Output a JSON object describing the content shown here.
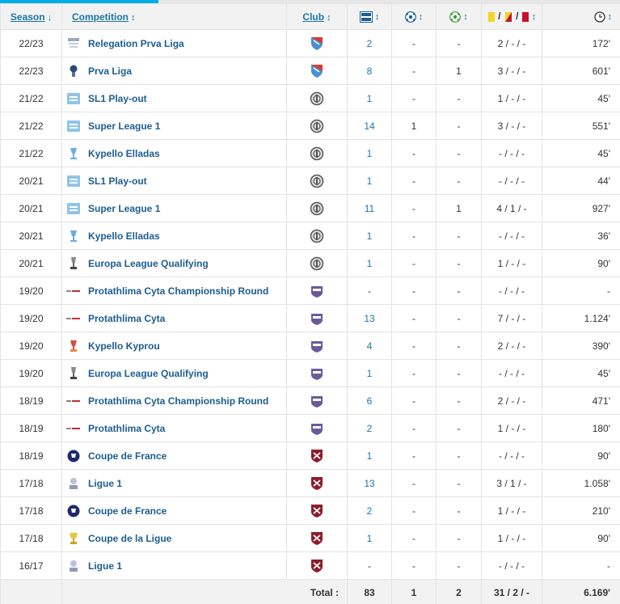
{
  "headers": {
    "season": "Season",
    "season_sort": "↓",
    "competition": "Competition",
    "competition_sort": "↕",
    "club": "Club",
    "club_sort": "↕",
    "sort": "↕",
    "cards_sep": " / ",
    "total_label": "Total :"
  },
  "rows": [
    {
      "season": "22/23",
      "comp": "Relegation Prva Liga",
      "comp_icon": "relegation-prva-liga-logo-icon",
      "club_icon": "red-blue-shield-crest-icon",
      "apps": "2",
      "goals": "-",
      "assists": "-",
      "cards": "2 / - / -",
      "mins": "172'"
    },
    {
      "season": "22/23",
      "comp": "Prva Liga",
      "comp_icon": "prva-liga-logo-icon",
      "club_icon": "red-blue-shield-crest-icon",
      "apps": "8",
      "goals": "-",
      "assists": "1",
      "cards": "3 / - / -",
      "mins": "601'"
    },
    {
      "season": "21/22",
      "comp": "SL1 Play-out",
      "comp_icon": "super-league-logo-icon",
      "club_icon": "gray-round-crest-icon",
      "apps": "1",
      "goals": "-",
      "assists": "-",
      "cards": "1 / - / -",
      "mins": "45'"
    },
    {
      "season": "21/22",
      "comp": "Super League 1",
      "comp_icon": "super-league-logo-icon",
      "club_icon": "gray-round-crest-icon",
      "apps": "14",
      "goals": "1",
      "assists": "-",
      "cards": "3 / - / -",
      "mins": "551'"
    },
    {
      "season": "21/22",
      "comp": "Kypello Elladas",
      "comp_icon": "greek-cup-logo-icon",
      "club_icon": "gray-round-crest-icon",
      "apps": "1",
      "goals": "-",
      "assists": "-",
      "cards": "- / - / -",
      "mins": "45'"
    },
    {
      "season": "20/21",
      "comp": "SL1 Play-out",
      "comp_icon": "super-league-logo-icon",
      "club_icon": "gray-round-crest-icon",
      "apps": "1",
      "goals": "-",
      "assists": "-",
      "cards": "- / - / -",
      "mins": "44'"
    },
    {
      "season": "20/21",
      "comp": "Super League 1",
      "comp_icon": "super-league-logo-icon",
      "club_icon": "gray-round-crest-icon",
      "apps": "11",
      "goals": "-",
      "assists": "1",
      "cards": "4 / 1 / -",
      "mins": "927'"
    },
    {
      "season": "20/21",
      "comp": "Kypello Elladas",
      "comp_icon": "greek-cup-logo-icon",
      "club_icon": "gray-round-crest-icon",
      "apps": "1",
      "goals": "-",
      "assists": "-",
      "cards": "- / - / -",
      "mins": "36'"
    },
    {
      "season": "20/21",
      "comp": "Europa League Qualifying",
      "comp_icon": "europa-league-trophy-icon",
      "club_icon": "gray-round-crest-icon",
      "apps": "1",
      "goals": "-",
      "assists": "-",
      "cards": "1 / - / -",
      "mins": "90'"
    },
    {
      "season": "19/20",
      "comp": "Protathlima Cyta Championship Round",
      "comp_icon": "cyta-league-logo-icon",
      "club_icon": "purple-white-crest-icon",
      "apps": "-",
      "goals": "-",
      "assists": "-",
      "cards": "- / - / -",
      "mins": "-"
    },
    {
      "season": "19/20",
      "comp": "Protathlima Cyta",
      "comp_icon": "cyta-league-logo-icon",
      "club_icon": "purple-white-crest-icon",
      "apps": "13",
      "goals": "-",
      "assists": "-",
      "cards": "7 / - / -",
      "mins": "1.124'"
    },
    {
      "season": "19/20",
      "comp": "Kypello Kyprou",
      "comp_icon": "cyprus-cup-logo-icon",
      "club_icon": "purple-white-crest-icon",
      "apps": "4",
      "goals": "-",
      "assists": "-",
      "cards": "2 / - / -",
      "mins": "390'"
    },
    {
      "season": "19/20",
      "comp": "Europa League Qualifying",
      "comp_icon": "europa-league-trophy-icon",
      "club_icon": "purple-white-crest-icon",
      "apps": "1",
      "goals": "-",
      "assists": "-",
      "cards": "- / - / -",
      "mins": "45'"
    },
    {
      "season": "18/19",
      "comp": "Protathlima Cyta Championship Round",
      "comp_icon": "cyta-league-logo-icon",
      "club_icon": "purple-white-crest-icon",
      "apps": "6",
      "goals": "-",
      "assists": "-",
      "cards": "2 / - / -",
      "mins": "471'"
    },
    {
      "season": "18/19",
      "comp": "Protathlima Cyta",
      "comp_icon": "cyta-league-logo-icon",
      "club_icon": "purple-white-crest-icon",
      "apps": "2",
      "goals": "-",
      "assists": "-",
      "cards": "1 / - / -",
      "mins": "180'"
    },
    {
      "season": "18/19",
      "comp": "Coupe de France",
      "comp_icon": "coupe-de-france-logo-icon",
      "club_icon": "maroon-cross-crest-icon",
      "apps": "1",
      "goals": "-",
      "assists": "-",
      "cards": "- / - / -",
      "mins": "90'"
    },
    {
      "season": "17/18",
      "comp": "Ligue 1",
      "comp_icon": "ligue-1-logo-icon",
      "club_icon": "maroon-cross-crest-icon",
      "apps": "13",
      "goals": "-",
      "assists": "-",
      "cards": "3 / 1 / -",
      "mins": "1.058'"
    },
    {
      "season": "17/18",
      "comp": "Coupe de France",
      "comp_icon": "coupe-de-france-logo-icon",
      "club_icon": "maroon-cross-crest-icon",
      "apps": "2",
      "goals": "-",
      "assists": "-",
      "cards": "1 / - / -",
      "mins": "210'"
    },
    {
      "season": "17/18",
      "comp": "Coupe de la Ligue",
      "comp_icon": "coupe-de-la-ligue-trophy-icon",
      "club_icon": "maroon-cross-crest-icon",
      "apps": "1",
      "goals": "-",
      "assists": "-",
      "cards": "1 / - / -",
      "mins": "90'"
    },
    {
      "season": "16/17",
      "comp": "Ligue 1",
      "comp_icon": "ligue-1-logo-icon",
      "club_icon": "maroon-cross-crest-icon",
      "apps": "-",
      "goals": "-",
      "assists": "-",
      "cards": "- / - / -",
      "mins": "-"
    }
  ],
  "totals": {
    "apps": "83",
    "goals": "1",
    "assists": "2",
    "cards": "31 / 2 / -",
    "mins": "6.169'"
  },
  "colors": {
    "accent": "#00aee5",
    "link": "#1d75a3",
    "yellow": "#f5d523",
    "red": "#c8102e"
  }
}
